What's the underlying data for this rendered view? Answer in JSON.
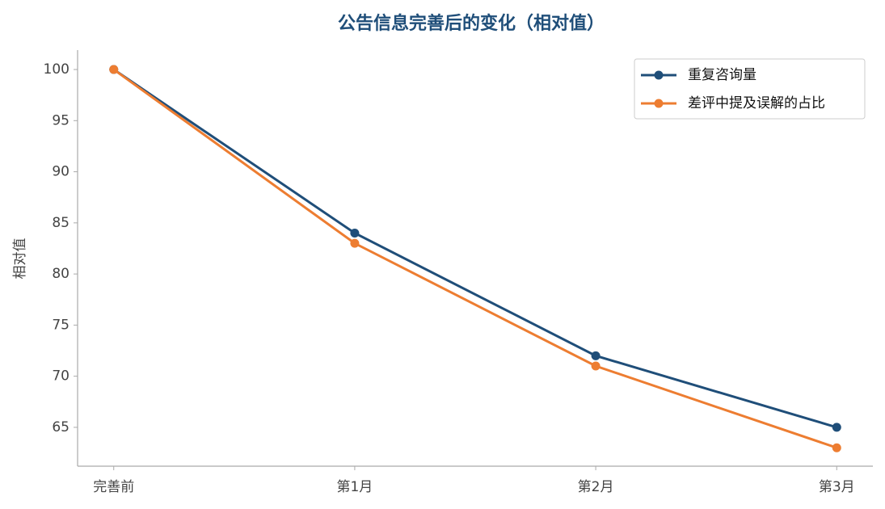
{
  "chart_data": {
    "type": "line",
    "title": "公告信息完善后的变化（相对值）",
    "y_label": "相对值",
    "categories": [
      "完善前",
      "第1月",
      "第2月",
      "第3月"
    ],
    "series": [
      {
        "name": "重复咨询量",
        "color": "#1f4e79",
        "values": [
          100,
          84,
          72,
          65
        ]
      },
      {
        "name": "差评中提及误解的占比",
        "color": "#ed7d31",
        "values": [
          100,
          83,
          71,
          63
        ]
      }
    ],
    "ylim": [
      61.2,
      101.9
    ],
    "yticks": [
      65,
      70,
      75,
      80,
      85,
      90,
      95,
      100
    ],
    "legend": "upper right",
    "grid": false
  }
}
